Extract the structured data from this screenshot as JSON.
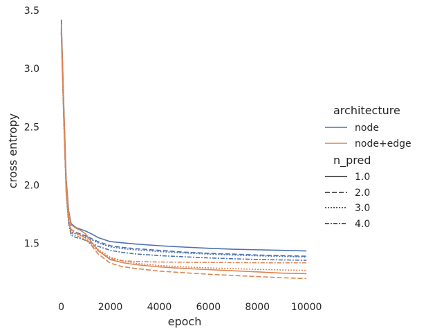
{
  "chart_data": {
    "type": "line",
    "xlabel": "epoch",
    "ylabel": "cross entropy",
    "xlim": [
      -300,
      10250
    ],
    "ylim": [
      1.07,
      3.5
    ],
    "xticks": [
      0,
      2000,
      4000,
      6000,
      8000,
      10000
    ],
    "xtick_labels": [
      "0",
      "2000",
      "4000",
      "6000",
      "8000",
      "10000"
    ],
    "yticks": [
      1.5,
      2.0,
      2.5,
      3.0,
      3.5
    ],
    "ytick_labels": [
      "1.5",
      "2.0",
      "2.5",
      "3.0",
      "3.5"
    ],
    "grid": false,
    "legend_placement": "right",
    "legend": {
      "hue_title": "architecture",
      "hue_entries": [
        {
          "label": "node",
          "color": "#4c72b0"
        },
        {
          "label": "node+edge",
          "color": "#dd8452"
        }
      ],
      "style_title": "n_pred",
      "style_entries": [
        {
          "label": "1.0",
          "dash": "solid"
        },
        {
          "label": "2.0",
          "dash": "dashed"
        },
        {
          "label": "3.0",
          "dash": "dotted"
        },
        {
          "label": "4.0",
          "dash": "dashdot"
        }
      ]
    },
    "x": [
      0,
      100,
      200,
      300,
      400,
      600,
      800,
      1000,
      1200,
      1500,
      2000,
      2500,
      3000,
      4000,
      5000,
      6000,
      7000,
      8000,
      9000,
      10000
    ],
    "series": [
      {
        "architecture": "node",
        "n_pred": "1.0",
        "color": "#4c72b0",
        "dash": "solid",
        "values": [
          3.42,
          2.7,
          2.05,
          1.78,
          1.67,
          1.635,
          1.62,
          1.605,
          1.585,
          1.55,
          1.515,
          1.505,
          1.495,
          1.48,
          1.468,
          1.458,
          1.45,
          1.445,
          1.44,
          1.435
        ]
      },
      {
        "architecture": "node",
        "n_pred": "2.0",
        "color": "#4c72b0",
        "dash": "dashed",
        "values": [
          3.35,
          2.6,
          1.98,
          1.72,
          1.62,
          1.595,
          1.58,
          1.565,
          1.545,
          1.515,
          1.48,
          1.465,
          1.455,
          1.44,
          1.425,
          1.415,
          1.408,
          1.4,
          1.395,
          1.39
        ]
      },
      {
        "architecture": "node",
        "n_pred": "3.0",
        "color": "#4c72b0",
        "dash": "dotted",
        "values": [
          3.3,
          2.55,
          1.95,
          1.7,
          1.6,
          1.58,
          1.57,
          1.555,
          1.535,
          1.505,
          1.47,
          1.455,
          1.445,
          1.43,
          1.418,
          1.408,
          1.4,
          1.393,
          1.388,
          1.383
        ]
      },
      {
        "architecture": "node",
        "n_pred": "4.0",
        "color": "#4c72b0",
        "dash": "dashdot",
        "values": [
          3.32,
          2.58,
          1.93,
          1.67,
          1.57,
          1.55,
          1.54,
          1.525,
          1.505,
          1.475,
          1.44,
          1.422,
          1.41,
          1.395,
          1.385,
          1.375,
          1.368,
          1.362,
          1.358,
          1.355
        ]
      },
      {
        "architecture": "node+edge",
        "n_pred": "1.0",
        "color": "#dd8452",
        "dash": "solid",
        "values": [
          3.38,
          2.68,
          2.02,
          1.76,
          1.66,
          1.63,
          1.61,
          1.58,
          1.52,
          1.44,
          1.36,
          1.335,
          1.318,
          1.298,
          1.285,
          1.275,
          1.265,
          1.255,
          1.245,
          1.24
        ]
      },
      {
        "architecture": "node+edge",
        "n_pred": "2.0",
        "color": "#dd8452",
        "dash": "dashed",
        "values": [
          3.35,
          2.62,
          1.97,
          1.72,
          1.62,
          1.59,
          1.57,
          1.545,
          1.49,
          1.41,
          1.33,
          1.3,
          1.285,
          1.262,
          1.248,
          1.235,
          1.225,
          1.215,
          1.205,
          1.198
        ]
      },
      {
        "architecture": "node+edge",
        "n_pred": "3.0",
        "color": "#dd8452",
        "dash": "dotted",
        "values": [
          3.3,
          2.58,
          1.96,
          1.71,
          1.61,
          1.585,
          1.565,
          1.545,
          1.505,
          1.45,
          1.38,
          1.35,
          1.33,
          1.31,
          1.298,
          1.29,
          1.283,
          1.277,
          1.272,
          1.268
        ]
      },
      {
        "architecture": "node+edge",
        "n_pred": "4.0",
        "color": "#dd8452",
        "dash": "dashdot",
        "values": [
          3.31,
          2.6,
          1.95,
          1.69,
          1.59,
          1.565,
          1.55,
          1.53,
          1.49,
          1.435,
          1.37,
          1.35,
          1.345,
          1.34,
          1.338,
          1.336,
          1.335,
          1.334,
          1.333,
          1.333
        ]
      }
    ]
  }
}
